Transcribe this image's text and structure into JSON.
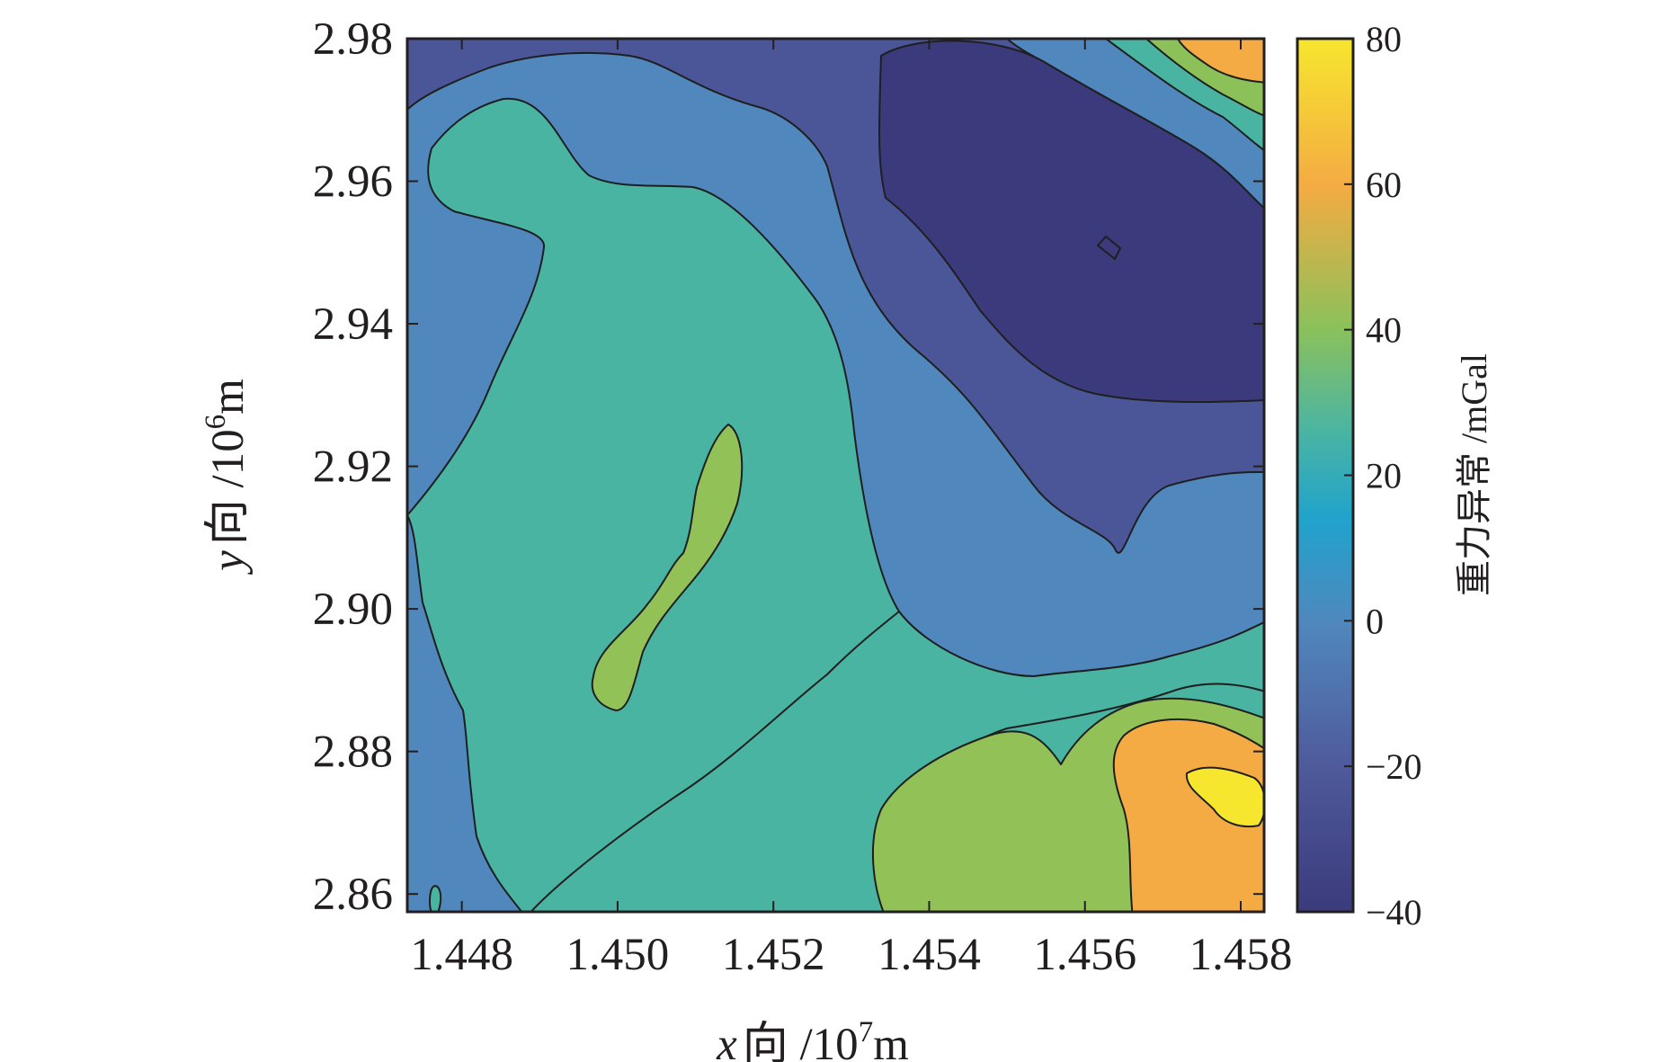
{
  "chart_data": {
    "type": "heatmap",
    "subtype": "filled-contour",
    "title": "",
    "xlabel": {
      "var": "x",
      "text": "向 /10",
      "exp": "7",
      "unit": "m"
    },
    "ylabel": {
      "var": "y",
      "text": "向 /10",
      "exp": "6",
      "unit": "m"
    },
    "xlim": [
      1.4473,
      1.4583
    ],
    "ylim": [
      2.8575,
      2.98
    ],
    "x_ticks": [
      1.448,
      1.45,
      1.452,
      1.454,
      1.456,
      1.458
    ],
    "x_tick_labels": [
      "1.448",
      "1.450",
      "1.452",
      "1.454",
      "1.456",
      "1.458"
    ],
    "y_ticks": [
      2.86,
      2.88,
      2.9,
      2.92,
      2.94,
      2.96,
      2.98
    ],
    "y_tick_labels": [
      "2.86",
      "2.88",
      "2.90",
      "2.92",
      "2.94",
      "2.96",
      "2.98"
    ],
    "colorbar": {
      "label": "重力异常 /mGal",
      "range": [
        -40,
        80
      ],
      "ticks": [
        -40,
        -20,
        0,
        20,
        40,
        60,
        80
      ],
      "tick_labels": [
        "−40",
        "−20",
        "0",
        "20",
        "40",
        "60",
        "80"
      ],
      "colormap": [
        "#3b3a7c",
        "#4f5b9c",
        "#5087bd",
        "#20a3cc",
        "#4ab4a3",
        "#8cc15a",
        "#f4ab43",
        "#f6e62e"
      ]
    },
    "contour_levels": [
      -40,
      -30,
      -15,
      0,
      15,
      30,
      45,
      60,
      75
    ],
    "level_colors": {
      "-35": "#3b3a7c",
      "-25": "#4a5698",
      "-10": "#5087bd",
      "20": "#4ab4a3",
      "38": "#92c158",
      "50": "#a0c451",
      "62": "#f4ab43",
      "75": "#f6e62e"
    },
    "regions": [
      {
        "level": -25,
        "area": "northern band from the north-west corner to the top edge"
      },
      {
        "level": -35,
        "area": "north-east trough around x≈1.456, y≈2.95"
      },
      {
        "level": -10,
        "area": "western margin and central band toward x≈1.456, y≈2.90"
      },
      {
        "level": 20,
        "area": "large central tongue and southern band"
      },
      {
        "level": 38,
        "area": "elongated lens near x≈1.451, y≈2.905"
      },
      {
        "level": 38,
        "area": "south-east lobe near x≈1.455, y≈2.87"
      },
      {
        "level": 62,
        "area": "south-east high near x≈1.4575, y≈2.875"
      },
      {
        "level": 75,
        "area": "peak near x≈1.458, y≈2.875"
      },
      {
        "level": 62,
        "area": "north-east corner high near x≈1.458, y≈2.978"
      }
    ]
  }
}
